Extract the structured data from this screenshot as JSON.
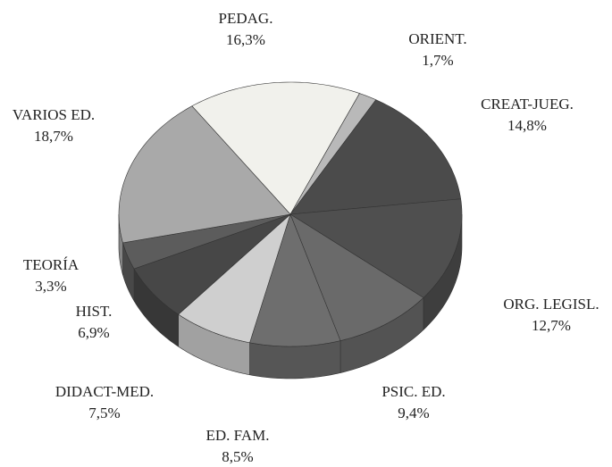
{
  "chart_data": {
    "type": "pie",
    "categories": [
      "PEDAG.",
      "ORIENT.",
      "CREAT-JUEG.",
      "ORG. LEGISL.",
      "PSIC. ED.",
      "ED. FAM.",
      "DIDACT-MED.",
      "HIST.",
      "TEORÍA",
      "VARIOS ED."
    ],
    "values": [
      16.3,
      1.7,
      14.8,
      12.7,
      9.4,
      8.5,
      7.5,
      6.9,
      3.3,
      18.7
    ],
    "value_labels": [
      "16,3%",
      "1,7%",
      "14,8%",
      "12,7%",
      "9,4%",
      "8,5%",
      "7,5%",
      "6,9%",
      "3,3%",
      "18,7%"
    ],
    "colors": [
      "#f1f1ec",
      "#b9b9b9",
      "#4b4b4b",
      "#4f4f4f",
      "#6a6a6a",
      "#6e6e6e",
      "#cfcfcf",
      "#474747",
      "#5c5c5c",
      "#a9a9a9"
    ]
  }
}
